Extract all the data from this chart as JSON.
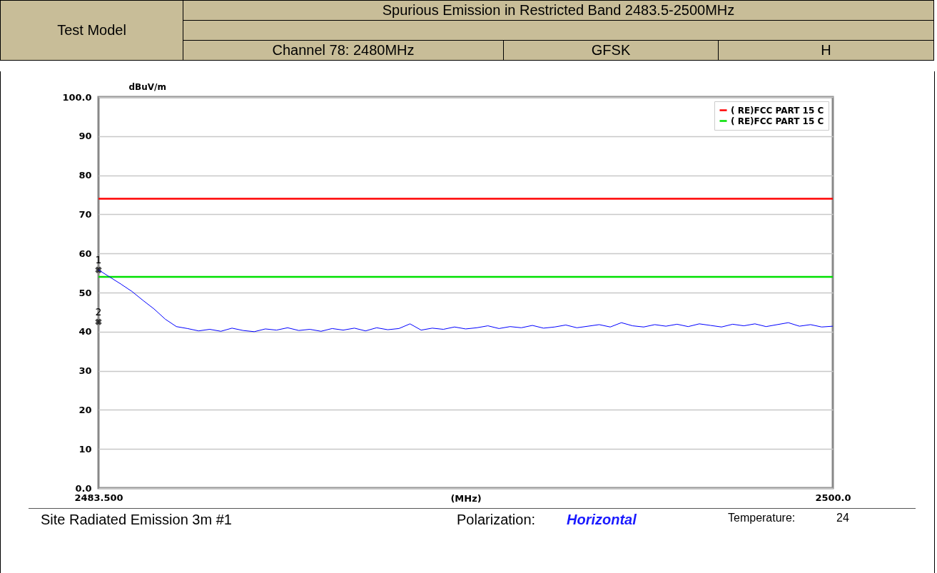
{
  "chart_data": {
    "type": "line",
    "title": "Spurious Emission in Restricted Band 2483.5-2500MHz",
    "xlabel": "(MHz)",
    "ylabel": "dBuV/m",
    "xlim": [
      2483.5,
      2500
    ],
    "xticks": [
      {
        "value": 2483.5,
        "label": "2483.500"
      },
      {
        "value": 2500,
        "label": "2500.0"
      }
    ],
    "ylim": [
      0,
      100
    ],
    "yticks": [
      {
        "value": 0,
        "label": "0.0"
      },
      10,
      20,
      30,
      40,
      50,
      60,
      70,
      80,
      90,
      {
        "value": 100,
        "label": "100.0"
      }
    ],
    "grid": "y",
    "legend": "top right",
    "line_style": "solid",
    "marker": "none",
    "series": [
      {
        "name": "( RE)FCC PART 15 C",
        "color": "#ff0000",
        "x": [
          2483.5,
          2500
        ],
        "values": [
          74,
          74
        ]
      },
      {
        "name": "( RE)FCC PART 15 C",
        "color": "#00e000",
        "x": [
          2483.5,
          2500
        ],
        "values": [
          54,
          54
        ]
      },
      {
        "color": "#0000ff",
        "x": [
          2483.5,
          2483.75,
          2484,
          2484.25,
          2484.5,
          2484.75,
          2485,
          2485.25,
          2485.5,
          2485.75,
          2486,
          2486.25,
          2486.5,
          2486.75,
          2487,
          2487.25,
          2487.5,
          2487.75,
          2488,
          2488.25,
          2488.5,
          2488.75,
          2489,
          2489.25,
          2489.5,
          2489.75,
          2490,
          2490.25,
          2490.5,
          2490.75,
          2491,
          2491.25,
          2491.5,
          2491.75,
          2492,
          2492.25,
          2492.5,
          2492.75,
          2493,
          2493.25,
          2493.5,
          2493.75,
          2494,
          2494.25,
          2494.5,
          2494.75,
          2495,
          2495.25,
          2495.5,
          2495.75,
          2496,
          2496.25,
          2496.5,
          2496.75,
          2497,
          2497.25,
          2497.5,
          2497.75,
          2498,
          2498.25,
          2498.5,
          2498.75,
          2499,
          2499.25,
          2499.5,
          2499.75,
          2500
        ],
        "values": [
          55.8,
          54.0,
          52.2,
          50.3,
          48.0,
          45.8,
          43.2,
          41.3,
          40.8,
          40.2,
          40.6,
          40.1,
          40.9,
          40.3,
          40.0,
          40.7,
          40.4,
          41.0,
          40.3,
          40.6,
          40.1,
          40.8,
          40.4,
          40.9,
          40.2,
          41.0,
          40.5,
          40.8,
          42.0,
          40.4,
          40.9,
          40.6,
          41.2,
          40.7,
          41.0,
          41.5,
          40.8,
          41.3,
          41.0,
          41.6,
          40.9,
          41.2,
          41.7,
          41.0,
          41.4,
          41.8,
          41.2,
          42.3,
          41.5,
          41.2,
          41.8,
          41.4,
          41.9,
          41.3,
          42.0,
          41.6,
          41.2,
          41.9,
          41.5,
          42.0,
          41.3,
          41.8,
          42.3,
          41.4,
          41.8,
          41.2,
          41.4
        ]
      },
      {
        "type": "scatter",
        "marker": "cross",
        "color": "#000000",
        "x": [
          2483.5,
          2483.5
        ],
        "values": [
          55.8,
          42.5
        ]
      }
    ],
    "annotations": [
      {
        "text": "1",
        "x": 2483.5,
        "y": 55.8
      },
      {
        "text": "2",
        "x": 2483.5,
        "y": 42.5
      },
      "Test Model",
      "Channel 78: 2480MHz",
      "GFSK",
      "H",
      "Site  Radiated Emission 3m #1",
      "Polarization:",
      "Horizontal",
      "Temperature:",
      "24"
    ]
  }
}
